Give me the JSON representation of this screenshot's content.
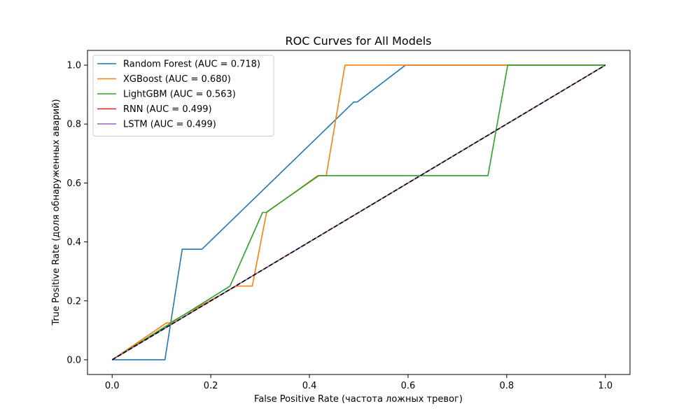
{
  "chart_data": {
    "type": "line",
    "title": "ROC Curves for All Models",
    "xlabel": "False Positive Rate (частота ложных тревог)",
    "ylabel": "True Positive Rate (доля обнаруженных аварий)",
    "xlim": [
      -0.05,
      1.05
    ],
    "ylim": [
      -0.05,
      1.05
    ],
    "xticks": [
      0.0,
      0.2,
      0.4,
      0.6,
      0.8,
      1.0
    ],
    "yticks": [
      0.0,
      0.2,
      0.4,
      0.6,
      0.8,
      1.0
    ],
    "xtick_labels": [
      "0.0",
      "0.2",
      "0.4",
      "0.6",
      "0.8",
      "1.0"
    ],
    "ytick_labels": [
      "0.0",
      "0.2",
      "0.4",
      "0.6",
      "0.8",
      "1.0"
    ],
    "grid": false,
    "legend_position": "top-left",
    "series": [
      {
        "name": "Random Forest (AUC = 0.718)",
        "color": "#1f77b4",
        "x": [
          0.0,
          0.107,
          0.142,
          0.182,
          0.49,
          0.497,
          0.595,
          1.0
        ],
        "y": [
          0.0,
          0.0,
          0.375,
          0.375,
          0.875,
          0.875,
          1.0,
          1.0
        ]
      },
      {
        "name": "XGBoost (AUC = 0.680)",
        "color": "#ff7f0e",
        "x": [
          0.0,
          0.11,
          0.116,
          0.252,
          0.284,
          0.313,
          0.417,
          0.434,
          0.472,
          1.0
        ],
        "y": [
          0.0,
          0.125,
          0.125,
          0.25,
          0.25,
          0.5,
          0.625,
          0.625,
          1.0,
          1.0
        ]
      },
      {
        "name": "LightGBM (AUC = 0.563)",
        "color": "#2ca02c",
        "x": [
          0.0,
          0.239,
          0.305,
          0.312,
          0.419,
          0.762,
          0.802,
          1.0
        ],
        "y": [
          0.0,
          0.25,
          0.5,
          0.5,
          0.625,
          0.625,
          1.0,
          1.0
        ]
      },
      {
        "name": "RNN (AUC = 0.499)",
        "color": "#d62728",
        "x": [
          0.0,
          1.0
        ],
        "y": [
          0.0,
          1.0
        ]
      },
      {
        "name": "LSTM (AUC = 0.499)",
        "color": "#9467bd",
        "x": [
          0.0,
          1.0
        ],
        "y": [
          0.0,
          1.0
        ]
      }
    ],
    "reference_line": {
      "style": "dashed",
      "color": "#000000",
      "x": [
        0.0,
        1.0
      ],
      "y": [
        0.0,
        1.0
      ]
    }
  }
}
